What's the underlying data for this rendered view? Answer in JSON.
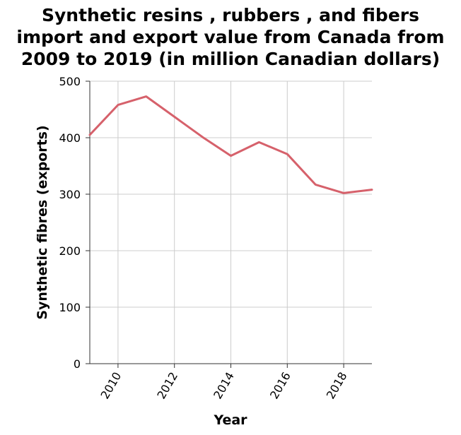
{
  "chart_data": {
    "type": "line",
    "title_lines": [
      "Synthetic resins , rubbers , and fibers",
      "import and export value from Canada from",
      "2009 to 2019 (in million Canadian dollars)"
    ],
    "xlabel": "Year",
    "ylabel": "Synthetic fibres (exports)",
    "x": [
      2009,
      2010,
      2011,
      2012,
      2013,
      2014,
      2015,
      2016,
      2017,
      2018,
      2019
    ],
    "series": [
      {
        "values": [
          405,
          458,
          473,
          437,
          401,
          368,
          392,
          371,
          317,
          302,
          308
        ],
        "color": "#d6616b"
      }
    ],
    "xlim": [
      2009,
      2019
    ],
    "ylim": [
      0,
      500
    ],
    "xticks": [
      2010,
      2012,
      2014,
      2016,
      2018
    ],
    "yticks": [
      0,
      100,
      200,
      300,
      400,
      500
    ],
    "grid": true,
    "grid_color": "#cccccc",
    "axis_color": "#333333",
    "legend": "none"
  }
}
